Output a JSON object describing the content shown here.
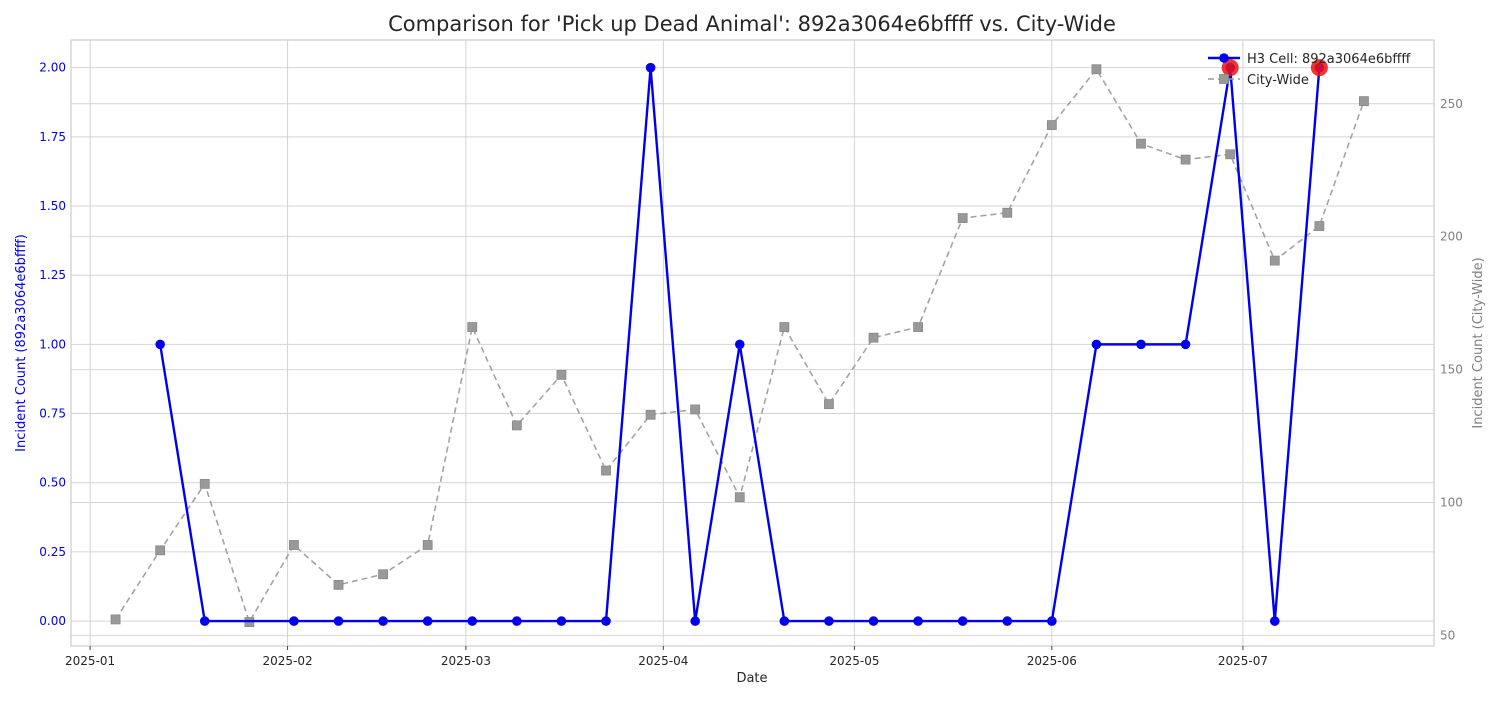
{
  "chart_data": {
    "type": "line",
    "title": "Comparison for 'Pick up Dead Animal': 892a3064e6bffff vs. City-Wide",
    "xlabel": "Date",
    "ylabel_left": "Incident Count (892a3064e6bffff)",
    "ylabel_right": "Incident Count (City-Wide)",
    "x_ticks": [
      "2025-01",
      "2025-02",
      "2025-03",
      "2025-04",
      "2025-05",
      "2025-06",
      "2025-07"
    ],
    "y_left_ticks": [
      "0.00",
      "0.25",
      "0.50",
      "0.75",
      "1.00",
      "1.25",
      "1.50",
      "1.75",
      "2.00"
    ],
    "y_right_ticks": [
      "50",
      "100",
      "150",
      "200",
      "250"
    ],
    "ylim_left": [
      -0.09,
      2.1
    ],
    "ylim_right": [
      46,
      274
    ],
    "xlim": [
      "2024-12-29",
      "2025-07-31"
    ],
    "grid": true,
    "legend_position": "top-right",
    "series": [
      {
        "name": "H3 Cell: 892a3064e6bffff",
        "axis": "left",
        "color": "#0000ee",
        "style": "solid",
        "marker": "circle",
        "x": [
          "2025-01-12",
          "2025-01-19",
          "2025-02-02",
          "2025-02-09",
          "2025-02-16",
          "2025-02-23",
          "2025-03-02",
          "2025-03-09",
          "2025-03-16",
          "2025-03-23",
          "2025-03-30",
          "2025-04-06",
          "2025-04-13",
          "2025-04-20",
          "2025-04-27",
          "2025-05-04",
          "2025-05-11",
          "2025-05-18",
          "2025-05-25",
          "2025-06-01",
          "2025-06-08",
          "2025-06-15",
          "2025-06-22",
          "2025-06-29",
          "2025-07-06",
          "2025-07-13"
        ],
        "values": [
          1,
          0,
          0,
          0,
          0,
          0,
          0,
          0,
          0,
          0,
          2,
          0,
          1,
          0,
          0,
          0,
          0,
          0,
          0,
          0,
          1,
          1,
          1,
          2,
          0,
          2
        ]
      },
      {
        "name": "City-Wide",
        "axis": "right",
        "color": "#999999",
        "style": "dashed",
        "marker": "square",
        "x": [
          "2025-01-05",
          "2025-01-12",
          "2025-01-19",
          "2025-01-26",
          "2025-02-02",
          "2025-02-09",
          "2025-02-16",
          "2025-02-23",
          "2025-03-02",
          "2025-03-09",
          "2025-03-16",
          "2025-03-23",
          "2025-03-30",
          "2025-04-06",
          "2025-04-13",
          "2025-04-20",
          "2025-04-27",
          "2025-05-04",
          "2025-05-11",
          "2025-05-18",
          "2025-05-25",
          "2025-06-01",
          "2025-06-08",
          "2025-06-15",
          "2025-06-22",
          "2025-06-29",
          "2025-07-06",
          "2025-07-13",
          "2025-07-20"
        ],
        "values": [
          56,
          82,
          107,
          55,
          84,
          69,
          73,
          84,
          166,
          129,
          148,
          112,
          133,
          135,
          102,
          166,
          137,
          162,
          166,
          207,
          209,
          242,
          263,
          235,
          229,
          231,
          191,
          204,
          251
        ]
      }
    ],
    "highlighted_points": {
      "color": "#ee1111",
      "x": [
        "2025-06-29",
        "2025-07-13"
      ],
      "values": [
        2,
        2
      ]
    }
  }
}
